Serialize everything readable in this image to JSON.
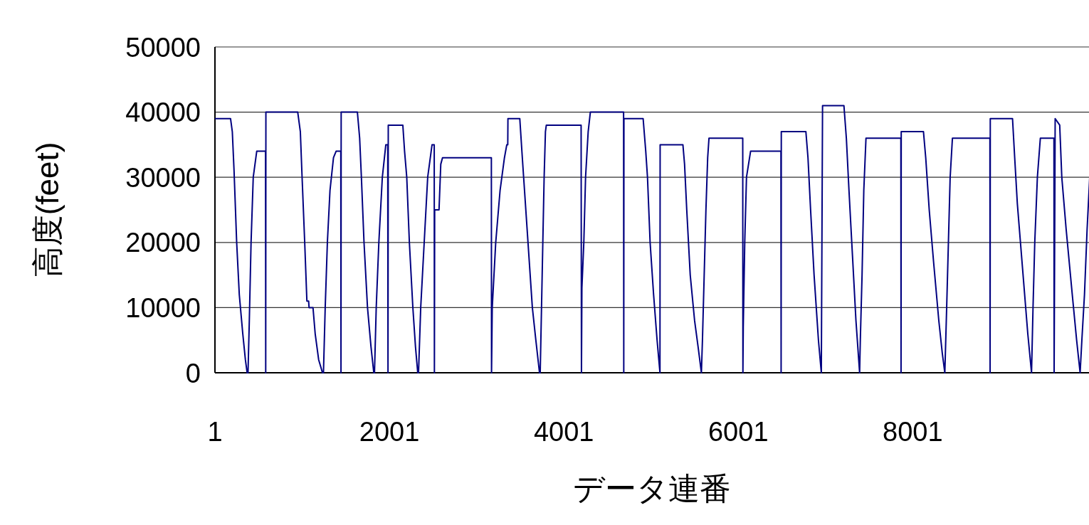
{
  "chart_data": {
    "type": "line",
    "xlabel": "データ連番",
    "ylabel": "高度(feet)",
    "xlim": [
      1,
      10030
    ],
    "xticks": [
      1,
      2001,
      4001,
      6001,
      8001
    ],
    "ylim": [
      0,
      50000
    ],
    "yticks": [
      0,
      10000,
      20000,
      30000,
      40000,
      50000
    ],
    "grid": "y",
    "line_style": "solid",
    "series": [
      {
        "color": "#000080",
        "x": [
          1,
          180,
          200,
          220,
          250,
          280,
          320,
          350,
          370,
          380,
          395,
          415,
          440,
          480,
          581,
          583,
          585,
          950,
          980,
          1000,
          1030,
          1055,
          1075,
          1080,
          1125,
          1150,
          1190,
          1234,
          1245,
          1265,
          1290,
          1320,
          1360,
          1390,
          1444,
          1446,
          1448,
          1634,
          1660,
          1680,
          1710,
          1750,
          1790,
          1822,
          1830,
          1850,
          1880,
          1920,
          1960,
          1982,
          1985,
          1988,
          2155,
          2175,
          2200,
          2230,
          2270,
          2300,
          2326,
          2335,
          2360,
          2400,
          2440,
          2490,
          2515,
          2517,
          2520,
          2570,
          2590,
          2610,
          3170,
          3172,
          3180,
          3220,
          3270,
          3320,
          3347,
          3358,
          3360,
          3496,
          3520,
          3540,
          3570,
          3600,
          3640,
          3680,
          3722,
          3730,
          3745,
          3760,
          3775,
          3790,
          3800,
          4199,
          4203,
          4208,
          4230,
          4250,
          4280,
          4305,
          4686,
          4688,
          4690,
          4910,
          4940,
          4960,
          4990,
          5030,
          5070,
          5103,
          5105,
          5366,
          5385,
          5410,
          5450,
          5500,
          5540,
          5578,
          5590,
          5610,
          5630,
          5650,
          5665,
          6052,
          6054,
          6058,
          6075,
          6095,
          6142,
          6490,
          6492,
          6494,
          6776,
          6800,
          6830,
          6870,
          6920,
          6953,
          6967,
          7212,
          7240,
          7270,
          7310,
          7350,
          7392,
          7400,
          7420,
          7440,
          7465,
          7865,
          7867,
          7869,
          8124,
          8150,
          8190,
          8240,
          8300,
          8340,
          8369,
          8390,
          8410,
          8430,
          8456,
          8886,
          8888,
          8890,
          9145,
          9170,
          9200,
          9260,
          9320,
          9363,
          9380,
          9400,
          9430,
          9464,
          9620,
          9622,
          9634,
          9686,
          9710,
          9760,
          9830,
          9880,
          9920,
          9940,
          9970,
          10000,
          10030
        ],
        "values": [
          39000,
          39000,
          37000,
          31000,
          20000,
          12000,
          6000,
          2000,
          0,
          0,
          8000,
          20000,
          30000,
          34000,
          34000,
          0,
          40000,
          40000,
          37000,
          30000,
          20000,
          11000,
          11000,
          10000,
          10000,
          6000,
          2000,
          0,
          0,
          10000,
          20000,
          28000,
          33000,
          34000,
          34000,
          0,
          40000,
          40000,
          36000,
          30000,
          20000,
          10000,
          4000,
          0,
          0,
          10000,
          20000,
          30000,
          35000,
          35000,
          0,
          38000,
          38000,
          34000,
          30000,
          20000,
          10000,
          4000,
          0,
          0,
          10000,
          20000,
          30000,
          35000,
          35000,
          0,
          25000,
          25000,
          32000,
          33000,
          33000,
          0,
          10000,
          20000,
          28000,
          33000,
          35000,
          35000,
          39000,
          39000,
          34000,
          30000,
          24000,
          18000,
          10000,
          5000,
          0,
          0,
          10000,
          20000,
          30000,
          37000,
          38000,
          38000,
          0,
          13000,
          20000,
          30000,
          37000,
          40000,
          40000,
          0,
          39000,
          39000,
          34000,
          30000,
          20000,
          12000,
          5000,
          0,
          35000,
          35000,
          32000,
          25000,
          15000,
          8000,
          4000,
          0,
          5000,
          15000,
          25000,
          33000,
          36000,
          36000,
          0,
          7000,
          20000,
          30000,
          34000,
          34000,
          0,
          37000,
          37000,
          33000,
          25000,
          15000,
          5000,
          0,
          41000,
          41000,
          36000,
          28000,
          18000,
          8000,
          0,
          5000,
          15000,
          28000,
          36000,
          36000,
          0,
          37000,
          37000,
          33000,
          25000,
          17000,
          8000,
          3000,
          0,
          10000,
          20000,
          30000,
          36000,
          36000,
          0,
          39000,
          39000,
          33000,
          26000,
          16000,
          6000,
          0,
          10000,
          20000,
          30000,
          36000,
          36000,
          0,
          39000,
          38000,
          30000,
          22000,
          12000,
          5000,
          0,
          5000,
          12000,
          22000,
          30000
        ]
      }
    ]
  }
}
